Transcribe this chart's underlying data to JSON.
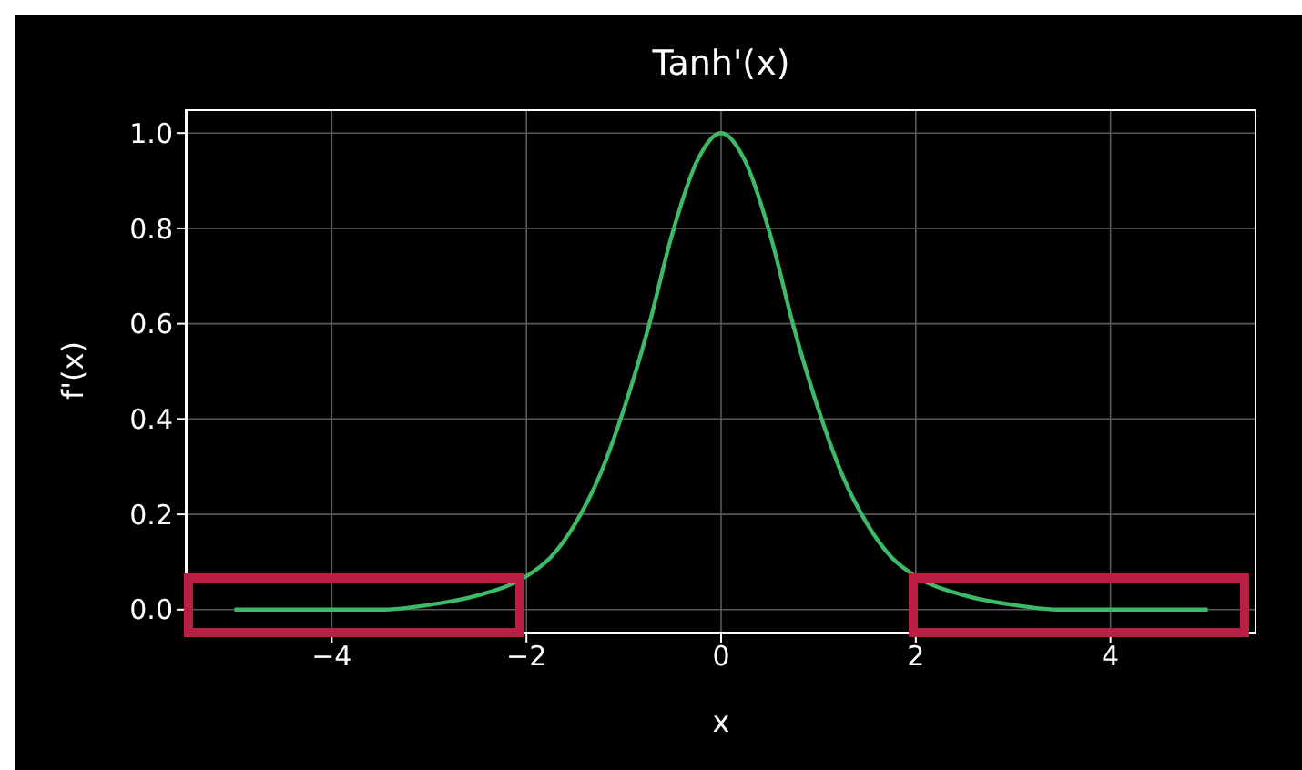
{
  "chart_data": {
    "type": "line",
    "title": "Tanh'(x)",
    "xlabel": "x",
    "ylabel": "f'(x)",
    "x": [
      -5,
      -4.5,
      -4,
      -3.5,
      -3,
      -2.5,
      -2,
      -1.75,
      -1.5,
      -1.25,
      -1,
      -0.75,
      -0.5,
      -0.25,
      0,
      0.25,
      0.5,
      0.75,
      1,
      1.25,
      1.5,
      1.75,
      2,
      2.5,
      3,
      3.5,
      4,
      4.5,
      5
    ],
    "series": [
      {
        "color": "#3dba68",
        "values": [
          0,
          0,
          0,
          0,
          0.01,
          0.03,
          0.07,
          0.11,
          0.18,
          0.28,
          0.42,
          0.59,
          0.79,
          0.94,
          1.0,
          0.94,
          0.79,
          0.59,
          0.42,
          0.28,
          0.18,
          0.11,
          0.07,
          0.03,
          0.01,
          0,
          0,
          0,
          0
        ]
      }
    ],
    "xlim": [
      -5.5,
      5.5
    ],
    "xticks": [
      {
        "value": -4,
        "label": "−4"
      },
      {
        "value": -2,
        "label": "−2"
      },
      0,
      2,
      4
    ],
    "ylim": [
      -0.05,
      1.05
    ],
    "yticks": [
      {
        "value": 0,
        "label": "0.0"
      },
      {
        "value": 0.2,
        "label": "0.2"
      },
      {
        "value": 0.4,
        "label": "0.4"
      },
      {
        "value": 0.6,
        "label": "0.6"
      },
      {
        "value": 0.8,
        "label": "0.8"
      },
      {
        "value": 1,
        "label": "1.0"
      }
    ],
    "grid": true,
    "marker": "none",
    "line_style": "solid"
  }
}
